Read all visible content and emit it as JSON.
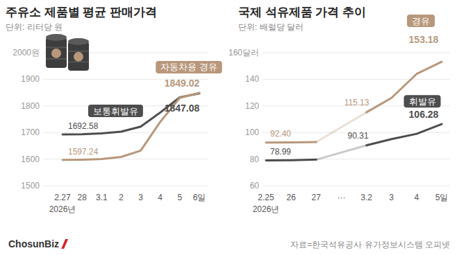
{
  "chart_data": [
    {
      "type": "line",
      "title": "주유소 제품별 평균 판매가격",
      "subtitle": "단위: 리터당 원",
      "xlabel": "2026년",
      "categories": [
        "2.27",
        "28",
        "3.1",
        "2",
        "3",
        "4",
        "5",
        "6일"
      ],
      "series": [
        {
          "name": "보통휘발유",
          "color": "#4d4d4d",
          "values": [
            1692.58,
            1693.1,
            1696.5,
            1703.0,
            1722.0,
            1775.0,
            1832.0,
            1847.08
          ],
          "value_labels": [
            "1692.58",
            null,
            null,
            null,
            null,
            null,
            null,
            "1847.08"
          ]
        },
        {
          "name": "자동차용 경유",
          "color": "#b8977b",
          "values": [
            1597.24,
            1597.8,
            1600.0,
            1608.0,
            1632.0,
            1740.0,
            1830.0,
            1849.02
          ],
          "value_labels": [
            "1597.24",
            null,
            null,
            null,
            null,
            null,
            null,
            "1849.02"
          ]
        }
      ],
      "ylim": [
        1500,
        2000
      ],
      "yticks": [
        1500,
        1600,
        1700,
        1800,
        1900,
        {
          "value": 2000,
          "label": "2000원"
        }
      ],
      "grid": true
    },
    {
      "type": "line",
      "title": "국제 석유제품 가격 추이",
      "subtitle": "단위: 배럴당 달러",
      "xlabel": "2026년",
      "categories": [
        "2.25",
        "26",
        "27",
        "···",
        "3.2",
        "3",
        "4",
        "5일"
      ],
      "series": [
        {
          "name": "휘발유",
          "color": "#4d4d4d",
          "values": [
            78.99,
            79.2,
            79.6,
            null,
            90.31,
            95.0,
            99.0,
            106.28
          ],
          "value_labels": [
            "78.99",
            null,
            null,
            null,
            "90.31",
            null,
            null,
            "106.28"
          ]
        },
        {
          "name": "경유",
          "color": "#b8977b",
          "values": [
            92.4,
            92.5,
            92.8,
            null,
            115.13,
            126.0,
            144.0,
            153.18
          ],
          "value_labels": [
            "92.40",
            null,
            null,
            null,
            "115.13",
            null,
            null,
            "153.18"
          ]
        }
      ],
      "ylim": [
        60,
        160
      ],
      "yticks": [
        60,
        80,
        100,
        120,
        140,
        {
          "value": 160,
          "label": "160달러"
        }
      ],
      "grid": true
    }
  ],
  "source": "자료=한국석유공사 유가정보시스템 오피넷",
  "logo": "ChosunBiz"
}
